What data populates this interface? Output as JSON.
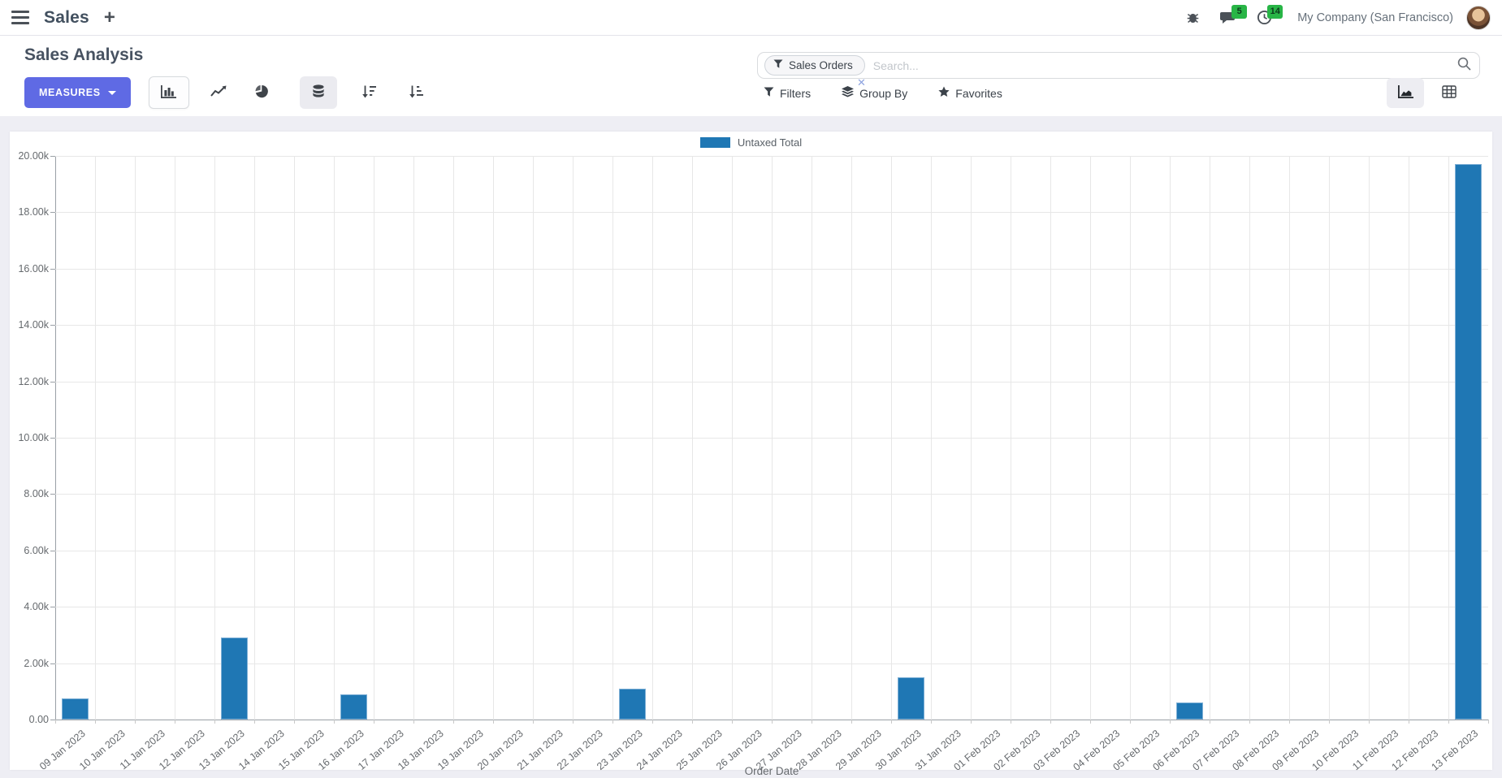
{
  "navbar": {
    "app_name": "Sales",
    "plus": "+",
    "company": "My Company (San Francisco)",
    "messages_badge": "5",
    "activities_badge": "14"
  },
  "control_panel": {
    "title": "Sales Analysis",
    "measures_label": "MEASURES",
    "filters_label": "Filters",
    "group_by_label": "Group By",
    "favorites_label": "Favorites",
    "search": {
      "facet_label": "Sales Orders",
      "placeholder": "Search...",
      "remove_glyph": "✕"
    }
  },
  "colors": {
    "accent": "#5f6ae4",
    "bar_blue": "#1f77b4",
    "badge_green": "#28b546",
    "page_background": "#eeeef4"
  },
  "chart_data": {
    "type": "bar",
    "title": "",
    "xlabel": "Order Date",
    "ylabel": "",
    "ylim": [
      0,
      20000
    ],
    "ytick_step": 2000,
    "ytick_labels": [
      "0.00",
      "2.00k",
      "4.00k",
      "6.00k",
      "8.00k",
      "10.00k",
      "12.00k",
      "14.00k",
      "16.00k",
      "18.00k",
      "20.00k"
    ],
    "grid": true,
    "legend_position": "top",
    "legend": [
      {
        "label": "Untaxed Total",
        "color": "#1f77b4"
      }
    ],
    "categories": [
      "09 Jan 2023",
      "10 Jan 2023",
      "11 Jan 2023",
      "12 Jan 2023",
      "13 Jan 2023",
      "14 Jan 2023",
      "15 Jan 2023",
      "16 Jan 2023",
      "17 Jan 2023",
      "18 Jan 2023",
      "19 Jan 2023",
      "20 Jan 2023",
      "21 Jan 2023",
      "22 Jan 2023",
      "23 Jan 2023",
      "24 Jan 2023",
      "25 Jan 2023",
      "26 Jan 2023",
      "27 Jan 2023",
      "28 Jan 2023",
      "29 Jan 2023",
      "30 Jan 2023",
      "31 Jan 2023",
      "01 Feb 2023",
      "02 Feb 2023",
      "03 Feb 2023",
      "04 Feb 2023",
      "05 Feb 2023",
      "06 Feb 2023",
      "07 Feb 2023",
      "08 Feb 2023",
      "09 Feb 2023",
      "10 Feb 2023",
      "11 Feb 2023",
      "12 Feb 2023",
      "13 Feb 2023"
    ],
    "series": [
      {
        "name": "Untaxed Total",
        "color": "#1f77b4",
        "values": [
          750,
          0,
          0,
          0,
          2900,
          0,
          0,
          900,
          0,
          0,
          0,
          0,
          0,
          0,
          1100,
          0,
          0,
          0,
          0,
          0,
          0,
          1500,
          0,
          0,
          0,
          0,
          0,
          0,
          600,
          0,
          0,
          0,
          0,
          0,
          0,
          19700
        ]
      }
    ]
  }
}
